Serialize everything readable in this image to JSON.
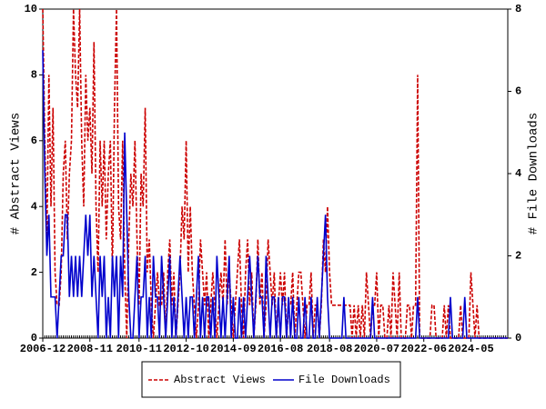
{
  "chart_data": {
    "type": "line",
    "y_label": "# Abstract Views",
    "y2_label": "# File Downloads",
    "xlim": [
      "2006-12",
      "2025-11"
    ],
    "xticks": [
      "2006-12",
      "2008-11",
      "2010-11",
      "2012-10",
      "2014-09",
      "2016-08",
      "2018-08",
      "2020-07",
      "2022-06",
      "2024-05"
    ],
    "ylim": [
      0,
      10
    ],
    "yticks": [
      0,
      2,
      4,
      6,
      8,
      10
    ],
    "y2lim": [
      0,
      8
    ],
    "y2ticks": [
      0,
      2,
      4,
      6,
      8
    ],
    "x": [
      "2006-12",
      "2007-01",
      "2007-02",
      "2007-03",
      "2007-04",
      "2007-05",
      "2007-06",
      "2007-07",
      "2007-08",
      "2007-09",
      "2007-10",
      "2007-11",
      "2007-12",
      "2008-01",
      "2008-02",
      "2008-03",
      "2008-04",
      "2008-05",
      "2008-06",
      "2008-07",
      "2008-08",
      "2008-09",
      "2008-10",
      "2008-11",
      "2008-12",
      "2009-01",
      "2009-02",
      "2009-03",
      "2009-04",
      "2009-05",
      "2009-06",
      "2009-07",
      "2009-08",
      "2009-09",
      "2009-10",
      "2009-11",
      "2009-12",
      "2010-01",
      "2010-02",
      "2010-03",
      "2010-04",
      "2010-05",
      "2010-06",
      "2010-07",
      "2010-08",
      "2010-09",
      "2010-10",
      "2010-11",
      "2010-12",
      "2011-01",
      "2011-02",
      "2011-03",
      "2011-04",
      "2011-05",
      "2011-06",
      "2011-07",
      "2011-08",
      "2011-09",
      "2011-10",
      "2011-11",
      "2011-12",
      "2012-01",
      "2012-02",
      "2012-03",
      "2012-04",
      "2012-05",
      "2012-06",
      "2012-07",
      "2012-08",
      "2012-09",
      "2012-10",
      "2012-11",
      "2012-12",
      "2013-01",
      "2013-02",
      "2013-03",
      "2013-04",
      "2013-05",
      "2013-06",
      "2013-07",
      "2013-08",
      "2013-09",
      "2013-10",
      "2013-11",
      "2013-12",
      "2014-01",
      "2014-02",
      "2014-03",
      "2014-04",
      "2014-05",
      "2014-06",
      "2014-07",
      "2014-08",
      "2014-09",
      "2014-10",
      "2014-11",
      "2014-12",
      "2015-01",
      "2015-02",
      "2015-03",
      "2015-04",
      "2015-05",
      "2015-06",
      "2015-07",
      "2015-08",
      "2015-09",
      "2015-10",
      "2015-11",
      "2015-12",
      "2016-01",
      "2016-02",
      "2016-03",
      "2016-04",
      "2016-05",
      "2016-06",
      "2016-07",
      "2016-08",
      "2016-09",
      "2016-10",
      "2016-11",
      "2016-12",
      "2017-01",
      "2017-02",
      "2017-03",
      "2017-04",
      "2017-05",
      "2017-06",
      "2017-07",
      "2017-08",
      "2017-09",
      "2017-10",
      "2017-11",
      "2017-12",
      "2018-01",
      "2018-02",
      "2018-03",
      "2018-04",
      "2018-05",
      "2018-06",
      "2018-07",
      "2018-08",
      "2018-09",
      "2018-10",
      "2018-11",
      "2018-12",
      "2019-01",
      "2019-02",
      "2019-03",
      "2019-04",
      "2019-05",
      "2019-06",
      "2019-07",
      "2019-08",
      "2019-09",
      "2019-10",
      "2019-11",
      "2019-12",
      "2020-01",
      "2020-02",
      "2020-03",
      "2020-04",
      "2020-05",
      "2020-06",
      "2020-07",
      "2020-08",
      "2020-09",
      "2020-10",
      "2020-11",
      "2020-12",
      "2021-01",
      "2021-02",
      "2021-03",
      "2021-04",
      "2021-05",
      "2021-06",
      "2021-07",
      "2021-08",
      "2021-09",
      "2021-10",
      "2021-11",
      "2021-12",
      "2022-01",
      "2022-02",
      "2022-03",
      "2022-04",
      "2022-05",
      "2022-06",
      "2022-07",
      "2022-08",
      "2022-09",
      "2022-10",
      "2022-11",
      "2022-12",
      "2023-01",
      "2023-02",
      "2023-03",
      "2023-04",
      "2023-05",
      "2023-06",
      "2023-07",
      "2023-08",
      "2023-09",
      "2023-10",
      "2023-11",
      "2023-12",
      "2024-01",
      "2024-02",
      "2024-03",
      "2024-04",
      "2024-05",
      "2024-06",
      "2024-07",
      "2024-08",
      "2024-09",
      "2024-10",
      "2024-11",
      "2024-12",
      "2025-01",
      "2025-02",
      "2025-03",
      "2025-04",
      "2025-05",
      "2025-06",
      "2025-07",
      "2025-08",
      "2025-09",
      "2025-10",
      "2025-11"
    ],
    "series": [
      {
        "name": "Abstract Views",
        "color": "#cc0000",
        "dash": true,
        "values": [
          10,
          6,
          3,
          8,
          4,
          7,
          2,
          1,
          1,
          2,
          5,
          6,
          3,
          5,
          6,
          10,
          8,
          7,
          10,
          6,
          4,
          8,
          6,
          7,
          5,
          9,
          4,
          2,
          6,
          4,
          6,
          3,
          5,
          6,
          2,
          7,
          10,
          4,
          3,
          6,
          2,
          0,
          3,
          5,
          4,
          6,
          3,
          1,
          5,
          4,
          7,
          2,
          3,
          1,
          0,
          1,
          2,
          1,
          1,
          2,
          0,
          2,
          3,
          1,
          2,
          0,
          1,
          2,
          4,
          3,
          6,
          2,
          4,
          2,
          1,
          0,
          1,
          3,
          2,
          1,
          2,
          0,
          1,
          2,
          1,
          0,
          1,
          2,
          1,
          3,
          1,
          2,
          1,
          0,
          1,
          2,
          3,
          1,
          0,
          2,
          3,
          1,
          2,
          0,
          1,
          3,
          1,
          2,
          0,
          1,
          3,
          2,
          1,
          2,
          0,
          1,
          2,
          1,
          2,
          0,
          1,
          1,
          2,
          0,
          1,
          2,
          2,
          1,
          0,
          1,
          1,
          2,
          0,
          1,
          1,
          0,
          1,
          3,
          2,
          4,
          2,
          1,
          1,
          1,
          1,
          1,
          1,
          1,
          1,
          1,
          1,
          0,
          1,
          0,
          1,
          0,
          1,
          0,
          2,
          1,
          0,
          1,
          1,
          2,
          0,
          1,
          1,
          0,
          0,
          1,
          0,
          2,
          1,
          0,
          2,
          0,
          0,
          0,
          1,
          1,
          0,
          1,
          1,
          8,
          0,
          0,
          0,
          0,
          0,
          0,
          1,
          1,
          0,
          0,
          0,
          0,
          1,
          0,
          1,
          0,
          0,
          0,
          0,
          0,
          1,
          0,
          0,
          0,
          0,
          2,
          1,
          0,
          1,
          0,
          0,
          0,
          0,
          0,
          0,
          0,
          0,
          0,
          0,
          0,
          0,
          0,
          0,
          0
        ]
      },
      {
        "name": "File Downloads",
        "color": "#0000cc",
        "dash": false,
        "axis": "y2",
        "values": [
          7,
          4,
          2,
          3,
          1,
          1,
          1,
          0,
          1,
          2,
          2,
          3,
          3,
          1,
          2,
          1,
          2,
          1,
          2,
          1,
          2,
          3,
          2,
          3,
          1,
          2,
          1,
          0,
          2,
          1,
          2,
          0,
          1,
          0,
          2,
          1,
          2,
          0,
          2,
          1,
          5,
          3,
          1,
          0,
          0,
          1,
          2,
          0,
          1,
          1,
          2,
          0,
          1,
          0,
          2,
          1,
          1,
          0,
          2,
          1,
          0,
          1,
          2,
          0,
          1,
          0,
          1,
          2,
          1,
          0,
          1,
          0,
          1,
          1,
          0,
          1,
          2,
          0,
          1,
          0,
          1,
          1,
          0,
          1,
          0,
          2,
          1,
          0,
          1,
          0,
          1,
          2,
          0,
          1,
          0,
          0,
          1,
          0,
          1,
          0,
          1,
          2,
          1,
          0,
          1,
          2,
          1,
          1,
          0,
          2,
          1,
          0,
          1,
          1,
          0,
          1,
          0,
          1,
          1,
          0,
          1,
          0,
          1,
          0,
          0,
          1,
          0,
          0,
          1,
          0,
          0,
          1,
          0,
          0,
          1,
          0,
          1,
          2,
          3,
          1,
          0,
          0,
          0,
          0,
          0,
          0,
          0,
          1,
          0,
          0,
          0,
          0,
          0,
          0,
          0,
          0,
          0,
          0,
          0,
          0,
          0,
          1,
          0,
          0,
          0,
          0,
          0,
          0,
          0,
          0,
          0,
          0,
          0,
          0,
          0,
          0,
          0,
          0,
          0,
          0,
          0,
          0,
          0,
          1,
          0,
          0,
          0,
          0,
          0,
          0,
          0,
          0,
          0,
          0,
          0,
          0,
          0,
          0,
          0,
          1,
          0,
          0,
          0,
          0,
          0,
          0,
          1,
          0,
          0,
          0,
          0,
          0,
          0,
          0,
          0,
          0,
          0,
          0,
          0,
          0,
          0,
          0,
          0,
          0,
          0,
          0,
          0,
          0
        ]
      }
    ]
  }
}
